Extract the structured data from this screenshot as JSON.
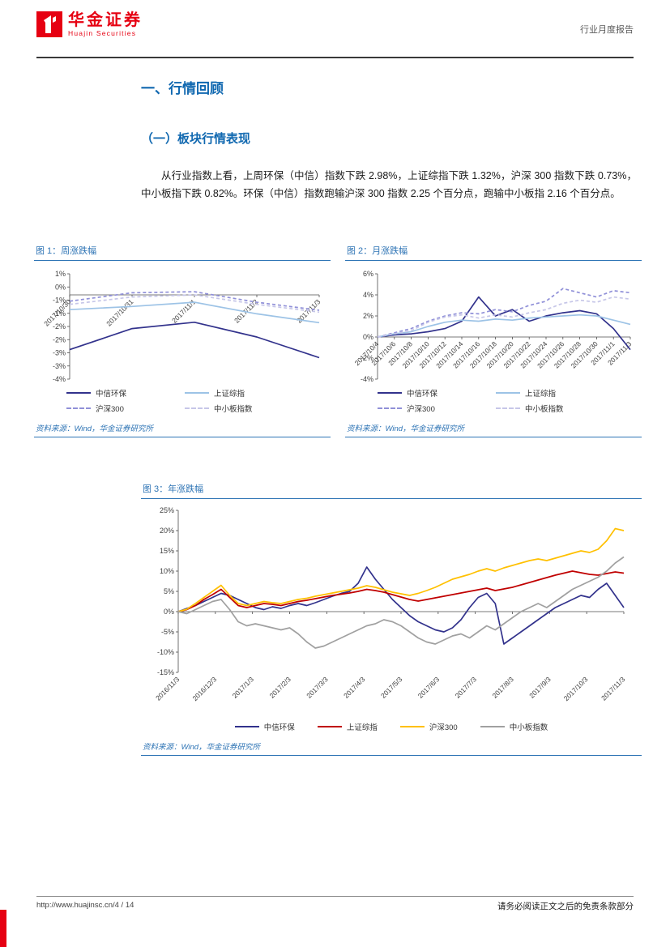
{
  "header": {
    "brand_cn": "华金证券",
    "brand_en": "Huajin Securities",
    "report_type": "行业月度报告"
  },
  "content": {
    "section_title": "一、行情回顾",
    "subsection_title": "（一）板块行情表现",
    "paragraph": "从行业指数上看，上周环保（中信）指数下跌 2.98%，上证综指下跌 1.32%，沪深 300 指数下跌 0.73%，中小板指下跌 0.82%。环保（中信）指数跑输沪深 300 指数 2.25 个百分点，跑输中小板指 2.16 个百分点。"
  },
  "figures": [
    {
      "title": "图 1：周涨跌幅",
      "source": "资料来源：Wind，华金证券研究所"
    },
    {
      "title": "图 2：月涨跌幅",
      "source": "资料来源：Wind，华金证券研究所"
    },
    {
      "title": "图 3：年涨跌幅",
      "source": "资料来源：Wind，华金证券研究所"
    }
  ],
  "footer": {
    "url_page": "http://www.huajinsc.cn/4 / 14",
    "disclaimer": "请务必阅读正文之后的免责条款部分"
  },
  "colors": {
    "brand_red": "#E60012",
    "accent_blue": "#2E74B5",
    "heading_blue": "#1068B0",
    "series_navy": "#32328C",
    "series_light_blue": "#9DC3E6",
    "series_purple": "#9090D8",
    "series_lavender": "#C6C6E8",
    "series_red": "#C00000",
    "series_gold": "#FFC000",
    "series_gray": "#A0A0A0"
  },
  "chart_data": [
    {
      "type": "line",
      "title": "周涨跌幅",
      "x_labels": [
        "2017/10/30",
        "2017/10/31",
        "2017/11/1",
        "2017/11/2",
        "2017/11/3"
      ],
      "ylim": [
        -4,
        1
      ],
      "ytick_labels": [
        "1%",
        "0%",
        "-1%",
        "-1%",
        "-2%",
        "-2%",
        "-3%",
        "-3%",
        "-4%"
      ],
      "x_labels_at_zero": true,
      "grid": false,
      "legend_position": "bottom-two-columns",
      "series": [
        {
          "name": "中信环保",
          "color": "#32328C",
          "dash": false,
          "values": [
            -2.6,
            -1.6,
            -1.3,
            -2.0,
            -2.98
          ]
        },
        {
          "name": "上证综指",
          "color": "#9DC3E6",
          "dash": false,
          "values": [
            -0.7,
            -0.55,
            -0.35,
            -0.9,
            -1.32
          ]
        },
        {
          "name": "沪深300",
          "color": "#9090D8",
          "dash": true,
          "values": [
            -0.3,
            0.1,
            0.15,
            -0.35,
            -0.73
          ]
        },
        {
          "name": "中小板指数",
          "color": "#C6C6E8",
          "dash": true,
          "values": [
            -0.45,
            -0.1,
            0.0,
            -0.45,
            -0.82
          ]
        }
      ]
    },
    {
      "type": "line",
      "title": "月涨跌幅",
      "x_labels": [
        "2017/10/4",
        "2017/10/6",
        "2017/10/8",
        "2017/10/10",
        "2017/10/12",
        "2017/10/14",
        "2017/10/16",
        "2017/10/18",
        "2017/10/20",
        "2017/10/22",
        "2017/10/24",
        "2017/10/26",
        "2017/10/28",
        "2017/10/30",
        "2017/11/1",
        "2017/11/3"
      ],
      "ylim": [
        -4,
        6
      ],
      "ytick_labels": [
        "6%",
        "4%",
        "2%",
        "0%",
        "-2%",
        "-4%"
      ],
      "x_labels_at_zero": true,
      "grid": false,
      "legend_position": "bottom-two-columns",
      "series": [
        {
          "name": "中信环保",
          "color": "#32328C",
          "dash": false,
          "values": [
            0,
            0.2,
            0.3,
            0.5,
            0.8,
            1.5,
            3.8,
            2.0,
            2.6,
            1.5,
            2.0,
            2.3,
            2.5,
            2.2,
            0.8,
            -1.2
          ]
        },
        {
          "name": "上证综指",
          "color": "#9DC3E6",
          "dash": false,
          "values": [
            0,
            0.3,
            0.5,
            1.0,
            1.4,
            1.6,
            1.5,
            1.7,
            1.6,
            1.8,
            1.9,
            2.0,
            2.1,
            2.0,
            1.6,
            1.2
          ]
        },
        {
          "name": "沪深300",
          "color": "#9090D8",
          "dash": true,
          "values": [
            0,
            0.4,
            0.8,
            1.5,
            2.0,
            2.3,
            2.2,
            2.6,
            2.4,
            3.0,
            3.4,
            4.6,
            4.2,
            3.8,
            4.4,
            4.2
          ]
        },
        {
          "name": "中小板指数",
          "color": "#C6C6E8",
          "dash": true,
          "values": [
            0,
            0.3,
            0.6,
            1.4,
            1.9,
            2.1,
            1.8,
            2.1,
            1.9,
            2.3,
            2.6,
            3.2,
            3.5,
            3.3,
            3.8,
            3.6
          ]
        }
      ]
    },
    {
      "type": "line",
      "title": "年涨跌幅",
      "x_labels": [
        "2016/11/3",
        "2016/12/3",
        "2017/1/3",
        "2017/2/3",
        "2017/3/3",
        "2017/4/3",
        "2017/5/3",
        "2017/6/3",
        "2017/7/3",
        "2017/8/3",
        "2017/9/3",
        "2017/10/3",
        "2017/11/3"
      ],
      "ylim": [
        -15,
        25
      ],
      "ytick_labels": [
        "25%",
        "20%",
        "15%",
        "10%",
        "5%",
        "0%",
        "-5%",
        "-10%",
        "-15%"
      ],
      "x_labels_at_zero": false,
      "grid": false,
      "legend_position": "bottom-row",
      "series": [
        {
          "name": "中信环保",
          "color": "#32328C",
          "dash": false,
          "values": [
            0,
            0.8,
            1.5,
            2.5,
            3.5,
            4.5,
            4.0,
            3.0,
            2.0,
            1.0,
            0.5,
            1.2,
            0.8,
            1.5,
            2.0,
            1.5,
            2.2,
            3.0,
            3.8,
            4.5,
            5.0,
            7.0,
            11.0,
            8.0,
            5.5,
            3.0,
            1.0,
            -1.0,
            -2.5,
            -3.5,
            -4.5,
            -5.0,
            -4.0,
            -2.0,
            1.0,
            3.5,
            4.5,
            2.0,
            -8.0,
            -6.5,
            -5.0,
            -3.5,
            -2.0,
            -0.5,
            1.0,
            2.0,
            3.0,
            4.0,
            3.5,
            5.5,
            7.0,
            4.0,
            1.0
          ]
        },
        {
          "name": "上证综指",
          "color": "#C00000",
          "dash": false,
          "values": [
            0,
            0.5,
            1.5,
            3.0,
            4.2,
            5.5,
            3.5,
            1.5,
            1.0,
            1.5,
            2.0,
            1.8,
            1.5,
            2.0,
            2.5,
            2.8,
            3.2,
            3.6,
            4.0,
            4.3,
            4.6,
            5.0,
            5.5,
            5.2,
            4.8,
            4.2,
            3.6,
            3.0,
            2.6,
            3.0,
            3.4,
            3.8,
            4.2,
            4.6,
            5.0,
            5.4,
            5.8,
            5.2,
            5.6,
            6.0,
            6.6,
            7.2,
            7.8,
            8.4,
            9.0,
            9.5,
            10.0,
            9.6,
            9.2,
            9.0,
            9.4,
            9.8,
            9.5
          ]
        },
        {
          "name": "沪深300",
          "color": "#FFC000",
          "dash": false,
          "values": [
            0,
            0.6,
            2.0,
            3.5,
            5.0,
            6.5,
            4.0,
            2.0,
            1.5,
            2.0,
            2.5,
            2.2,
            2.0,
            2.5,
            3.0,
            3.3,
            3.8,
            4.2,
            4.6,
            5.0,
            5.4,
            5.8,
            6.4,
            6.0,
            5.4,
            4.8,
            4.4,
            4.0,
            4.5,
            5.2,
            6.0,
            7.0,
            8.0,
            8.6,
            9.2,
            10.0,
            10.6,
            10.0,
            10.8,
            11.4,
            12.0,
            12.6,
            13.0,
            12.6,
            13.2,
            13.8,
            14.4,
            15.0,
            14.6,
            15.4,
            17.5,
            20.5,
            20.0
          ]
        },
        {
          "name": "中小板指数",
          "color": "#A0A0A0",
          "dash": false,
          "values": [
            0,
            -0.5,
            0.5,
            1.5,
            2.5,
            3.0,
            0.5,
            -2.5,
            -3.5,
            -3.0,
            -3.5,
            -4.0,
            -4.5,
            -4.0,
            -5.5,
            -7.5,
            -9.0,
            -8.5,
            -7.5,
            -6.5,
            -5.5,
            -4.5,
            -3.5,
            -3.0,
            -2.0,
            -2.5,
            -3.5,
            -5.0,
            -6.5,
            -7.5,
            -8.0,
            -7.0,
            -6.0,
            -5.5,
            -6.5,
            -5.0,
            -3.5,
            -4.5,
            -3.0,
            -1.5,
            0.0,
            1.0,
            2.0,
            1.0,
            2.5,
            4.0,
            5.5,
            6.5,
            7.5,
            8.5,
            10.0,
            12.0,
            13.5
          ]
        }
      ]
    }
  ]
}
